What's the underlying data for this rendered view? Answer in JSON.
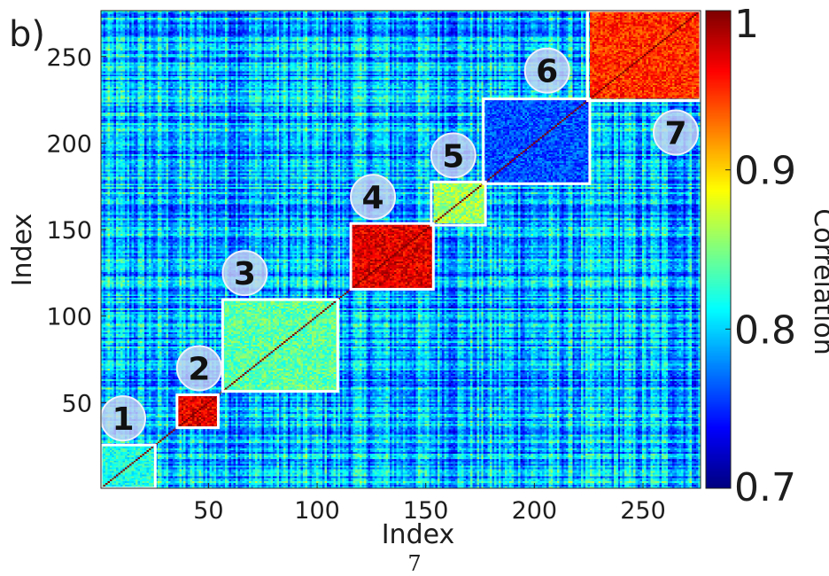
{
  "panel_label": "b)",
  "page_number": "7",
  "chart_data": {
    "type": "heatmap",
    "title": "",
    "xlabel": "Index",
    "ylabel": "Index",
    "colorbar_label": "Correlation",
    "n": 276,
    "xlim": [
      1,
      276
    ],
    "ylim": [
      1,
      276
    ],
    "x_ticks": [
      50,
      100,
      150,
      200,
      250
    ],
    "y_ticks": [
      50,
      100,
      150,
      200,
      250
    ],
    "x_tick_labels": [
      "50",
      "100",
      "150",
      "200",
      "250"
    ],
    "y_tick_labels": [
      "50",
      "100",
      "150",
      "200",
      "250"
    ],
    "colorbar": {
      "min": 0.7,
      "max": 1.0,
      "ticks": [
        0.7,
        0.8,
        0.9,
        1.0
      ],
      "tick_labels": [
        "0.7",
        "0.8",
        "0.9",
        "1"
      ],
      "colormap": "jet"
    },
    "background_correlation_range": [
      0.72,
      0.86
    ],
    "cluster_boxes": [
      {
        "label": "1",
        "start": 1,
        "end": 25,
        "mean_correlation": 0.82
      },
      {
        "label": "2",
        "start": 36,
        "end": 54,
        "mean_correlation": 0.97
      },
      {
        "label": "3",
        "start": 57,
        "end": 109,
        "mean_correlation": 0.84
      },
      {
        "label": "4",
        "start": 116,
        "end": 153,
        "mean_correlation": 0.97
      },
      {
        "label": "5",
        "start": 153,
        "end": 177,
        "mean_correlation": 0.86
      },
      {
        "label": "6",
        "start": 177,
        "end": 225,
        "mean_correlation": 0.76
      },
      {
        "label": "7",
        "start": 225,
        "end": 276,
        "mean_correlation": 0.95
      }
    ],
    "grid": false,
    "legend": "colorbar-right"
  }
}
